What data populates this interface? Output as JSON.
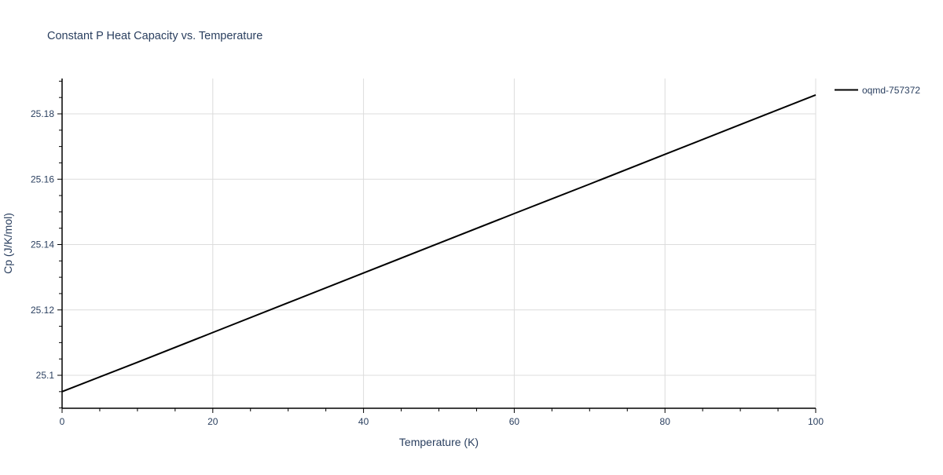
{
  "chart_data": {
    "type": "line",
    "title": "Constant P Heat Capacity vs. Temperature",
    "xlabel": "Temperature (K)",
    "ylabel": "Cp (J/K/mol)",
    "xlim": [
      0,
      100
    ],
    "ylim": [
      25.09,
      25.191
    ],
    "xticks": [
      0,
      20,
      40,
      60,
      80,
      100
    ],
    "xtick_labels": [
      "0",
      "20",
      "40",
      "60",
      "80",
      "100"
    ],
    "yticks": [
      25.1,
      25.12,
      25.14,
      25.16,
      25.18
    ],
    "ytick_labels": [
      "25.1",
      "25.12",
      "25.14",
      "25.16",
      "25.18"
    ],
    "grid": true,
    "legend_position": "top-right",
    "series": [
      {
        "name": "oqmd-757372",
        "color": "#000000",
        "x": [
          0,
          10,
          20,
          30,
          40,
          50,
          60,
          70,
          80,
          90,
          100
        ],
        "y": [
          25.095,
          25.104,
          25.1131,
          25.1222,
          25.1313,
          25.1404,
          25.1495,
          25.1585,
          25.1676,
          25.1767,
          25.1858
        ]
      }
    ]
  }
}
